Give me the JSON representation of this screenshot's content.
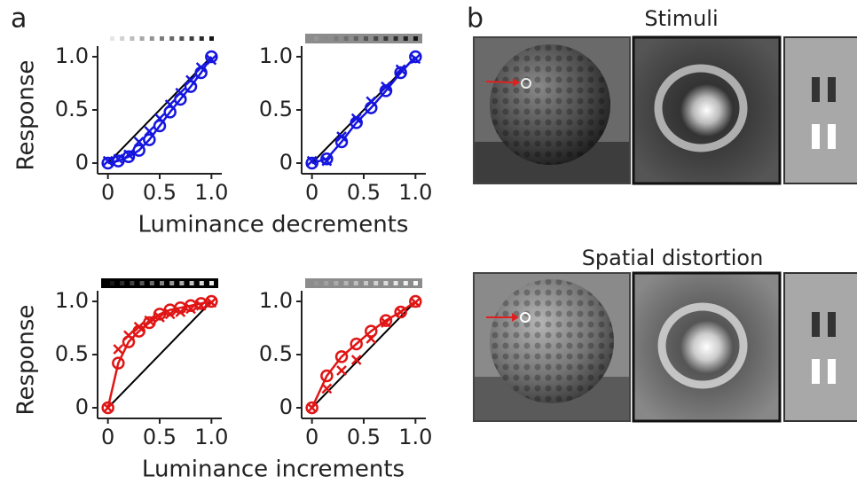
{
  "panel_labels": [
    "a",
    "b"
  ],
  "chart_data": [
    {
      "type": "line",
      "ylabel": "Response",
      "xlabel": "Luminance decrements",
      "x": [
        0,
        0.1,
        0.2,
        0.3,
        0.4,
        0.5,
        0.6,
        0.7,
        0.8,
        0.9,
        1.0
      ],
      "series": [
        {
          "color": "#1515e0",
          "marker": "o",
          "line": true,
          "values": [
            0,
            0.02,
            0.06,
            0.12,
            0.22,
            0.35,
            0.48,
            0.6,
            0.72,
            0.85,
            1.0
          ]
        },
        {
          "color": "#1515e0",
          "marker": "x",
          "line": false,
          "values": [
            0.02,
            0.04,
            0.08,
            0.2,
            0.3,
            0.42,
            0.55,
            0.66,
            0.78,
            0.9,
            0.97
          ]
        }
      ],
      "diagonal": true,
      "xlim": [
        -0.1,
        1.1
      ],
      "ylim": [
        -0.1,
        1.1
      ],
      "xticks": [
        0,
        0.5,
        {
          "value": 1,
          "label": "1.0"
        }
      ],
      "yticks": [
        0,
        0.5,
        {
          "value": 1,
          "label": "1.0"
        }
      ]
    },
    {
      "type": "line",
      "x": [
        0,
        0.143,
        0.286,
        0.429,
        0.571,
        0.714,
        0.857,
        1.0
      ],
      "series": [
        {
          "color": "#1515e0",
          "marker": "o",
          "line": true,
          "values": [
            0,
            0.04,
            0.2,
            0.38,
            0.52,
            0.68,
            0.85,
            1.0
          ]
        },
        {
          "color": "#1515e0",
          "marker": "x",
          "line": false,
          "values": [
            0.02,
            0.02,
            0.25,
            0.42,
            0.58,
            0.72,
            0.88,
            0.98
          ]
        }
      ],
      "diagonal": true,
      "xlim": [
        -0.1,
        1.1
      ],
      "ylim": [
        -0.1,
        1.1
      ],
      "xticks": [
        0,
        0.5,
        {
          "value": 1,
          "label": "1.0"
        }
      ],
      "yticks": [
        0,
        0.5,
        {
          "value": 1,
          "label": "1.0"
        }
      ]
    },
    {
      "type": "line",
      "ylabel": "Response",
      "xlabel": "Luminance increments",
      "x": [
        0,
        0.1,
        0.2,
        0.3,
        0.4,
        0.5,
        0.6,
        0.7,
        0.8,
        0.9,
        1.0
      ],
      "series": [
        {
          "color": "#e01515",
          "marker": "o",
          "line": true,
          "values": [
            0,
            0.42,
            0.62,
            0.72,
            0.8,
            0.88,
            0.92,
            0.94,
            0.96,
            0.98,
            1.0
          ]
        },
        {
          "color": "#e01515",
          "marker": "x",
          "line": false,
          "values": [
            0,
            0.55,
            0.68,
            0.76,
            0.82,
            0.85,
            0.88,
            0.9,
            0.93,
            0.96,
            0.99
          ]
        }
      ],
      "diagonal": true,
      "xlim": [
        -0.1,
        1.1
      ],
      "ylim": [
        -0.1,
        1.1
      ],
      "xticks": [
        0,
        0.5,
        {
          "value": 1,
          "label": "1.0"
        }
      ],
      "yticks": [
        0,
        0.5,
        {
          "value": 1,
          "label": "1.0"
        }
      ]
    },
    {
      "type": "line",
      "x": [
        0,
        0.143,
        0.286,
        0.429,
        0.571,
        0.714,
        0.857,
        1.0
      ],
      "series": [
        {
          "color": "#e01515",
          "marker": "o",
          "line": true,
          "values": [
            0,
            0.3,
            0.48,
            0.6,
            0.72,
            0.82,
            0.9,
            1.0
          ]
        },
        {
          "color": "#e01515",
          "marker": "x",
          "line": false,
          "values": [
            0,
            0.18,
            0.35,
            0.45,
            0.65,
            0.8,
            0.9,
            0.99
          ]
        }
      ],
      "diagonal": true,
      "xlim": [
        -0.1,
        1.1
      ],
      "ylim": [
        -0.1,
        1.1
      ],
      "xticks": [
        0,
        0.5,
        {
          "value": 1,
          "label": "1.0"
        }
      ],
      "yticks": [
        0,
        0.5,
        {
          "value": 1,
          "label": "1.0"
        }
      ]
    }
  ],
  "stimuli": {
    "title": "Stimuli"
  },
  "distortion": {
    "title": "Spatial distortion"
  }
}
